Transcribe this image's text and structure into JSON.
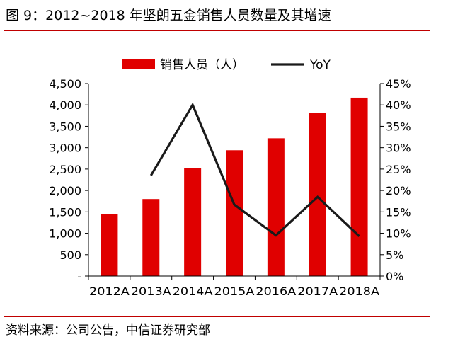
{
  "figure": {
    "title": "图 9：2012~2018 年坚朗五金销售人员数量及其增速",
    "source": "资料来源：公司公告，中信证券研究部"
  },
  "chart_data": {
    "type": "bar",
    "title": "",
    "xlabel": "",
    "ylabel": "",
    "categories": [
      "2012A",
      "2013A",
      "2014A",
      "2015A",
      "2016A",
      "2017A",
      "2018A"
    ],
    "series": [
      {
        "name": "销售人员（人）",
        "type": "bar",
        "axis": "left",
        "color": "#e00000",
        "values": [
          1450,
          1800,
          2520,
          2940,
          3220,
          3820,
          4170
        ]
      },
      {
        "name": "YoY",
        "type": "line",
        "axis": "right",
        "color": "#1a1a1a",
        "values": [
          null,
          0.235,
          0.4,
          0.167,
          0.095,
          0.185,
          0.093
        ]
      }
    ],
    "y_left": {
      "ylim": [
        0,
        4500
      ],
      "ticks": [
        0,
        500,
        1000,
        1500,
        2000,
        2500,
        3000,
        3500,
        4000,
        4500
      ],
      "tick_labels": [
        "-",
        "500",
        "1,000",
        "1,500",
        "2,000",
        "2,500",
        "3,000",
        "3,500",
        "4,000",
        "4,500"
      ]
    },
    "y_right": {
      "ylim": [
        0,
        0.45
      ],
      "ticks": [
        0,
        0.05,
        0.1,
        0.15,
        0.2,
        0.25,
        0.3,
        0.35,
        0.4,
        0.45
      ],
      "tick_labels": [
        "0%",
        "5%",
        "10%",
        "15%",
        "20%",
        "25%",
        "30%",
        "35%",
        "40%",
        "45%"
      ]
    },
    "legend": {
      "placement": "top-center",
      "entries": [
        "销售人员（人）",
        "YoY"
      ]
    },
    "grid": false
  }
}
